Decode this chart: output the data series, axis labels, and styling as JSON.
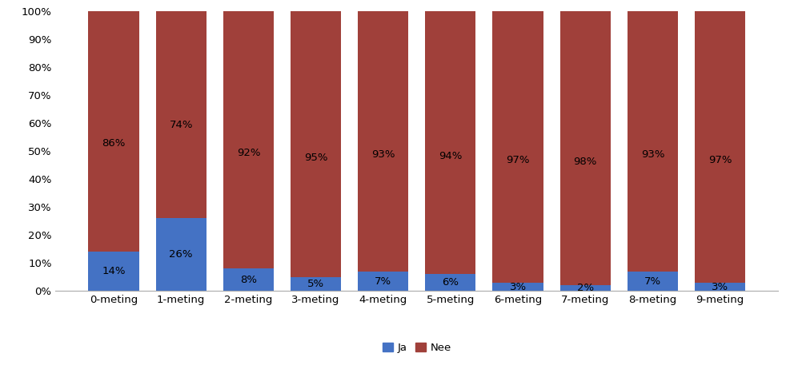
{
  "categories": [
    "0-meting",
    "1-meting",
    "2-meting",
    "3-meting",
    "4-meting",
    "5-meting",
    "6-meting",
    "7-meting",
    "8-meting",
    "9-meting"
  ],
  "ja_values": [
    14,
    26,
    8,
    5,
    7,
    6,
    3,
    2,
    7,
    3
  ],
  "nee_values": [
    86,
    74,
    92,
    95,
    93,
    94,
    97,
    98,
    93,
    97
  ],
  "ja_color": "#4472C4",
  "nee_color": "#A0403A",
  "background_color": "#FFFFFF",
  "yticks": [
    0,
    10,
    20,
    30,
    40,
    50,
    60,
    70,
    80,
    90,
    100
  ],
  "ytick_labels": [
    "0%",
    "10%",
    "20%",
    "30%",
    "40%",
    "50%",
    "60%",
    "70%",
    "80%",
    "90%",
    "100%"
  ],
  "legend_labels": [
    "Ja",
    "Nee"
  ],
  "bar_width": 0.75,
  "label_fontsize": 9.5,
  "tick_fontsize": 9.5,
  "legend_fontsize": 9.5
}
